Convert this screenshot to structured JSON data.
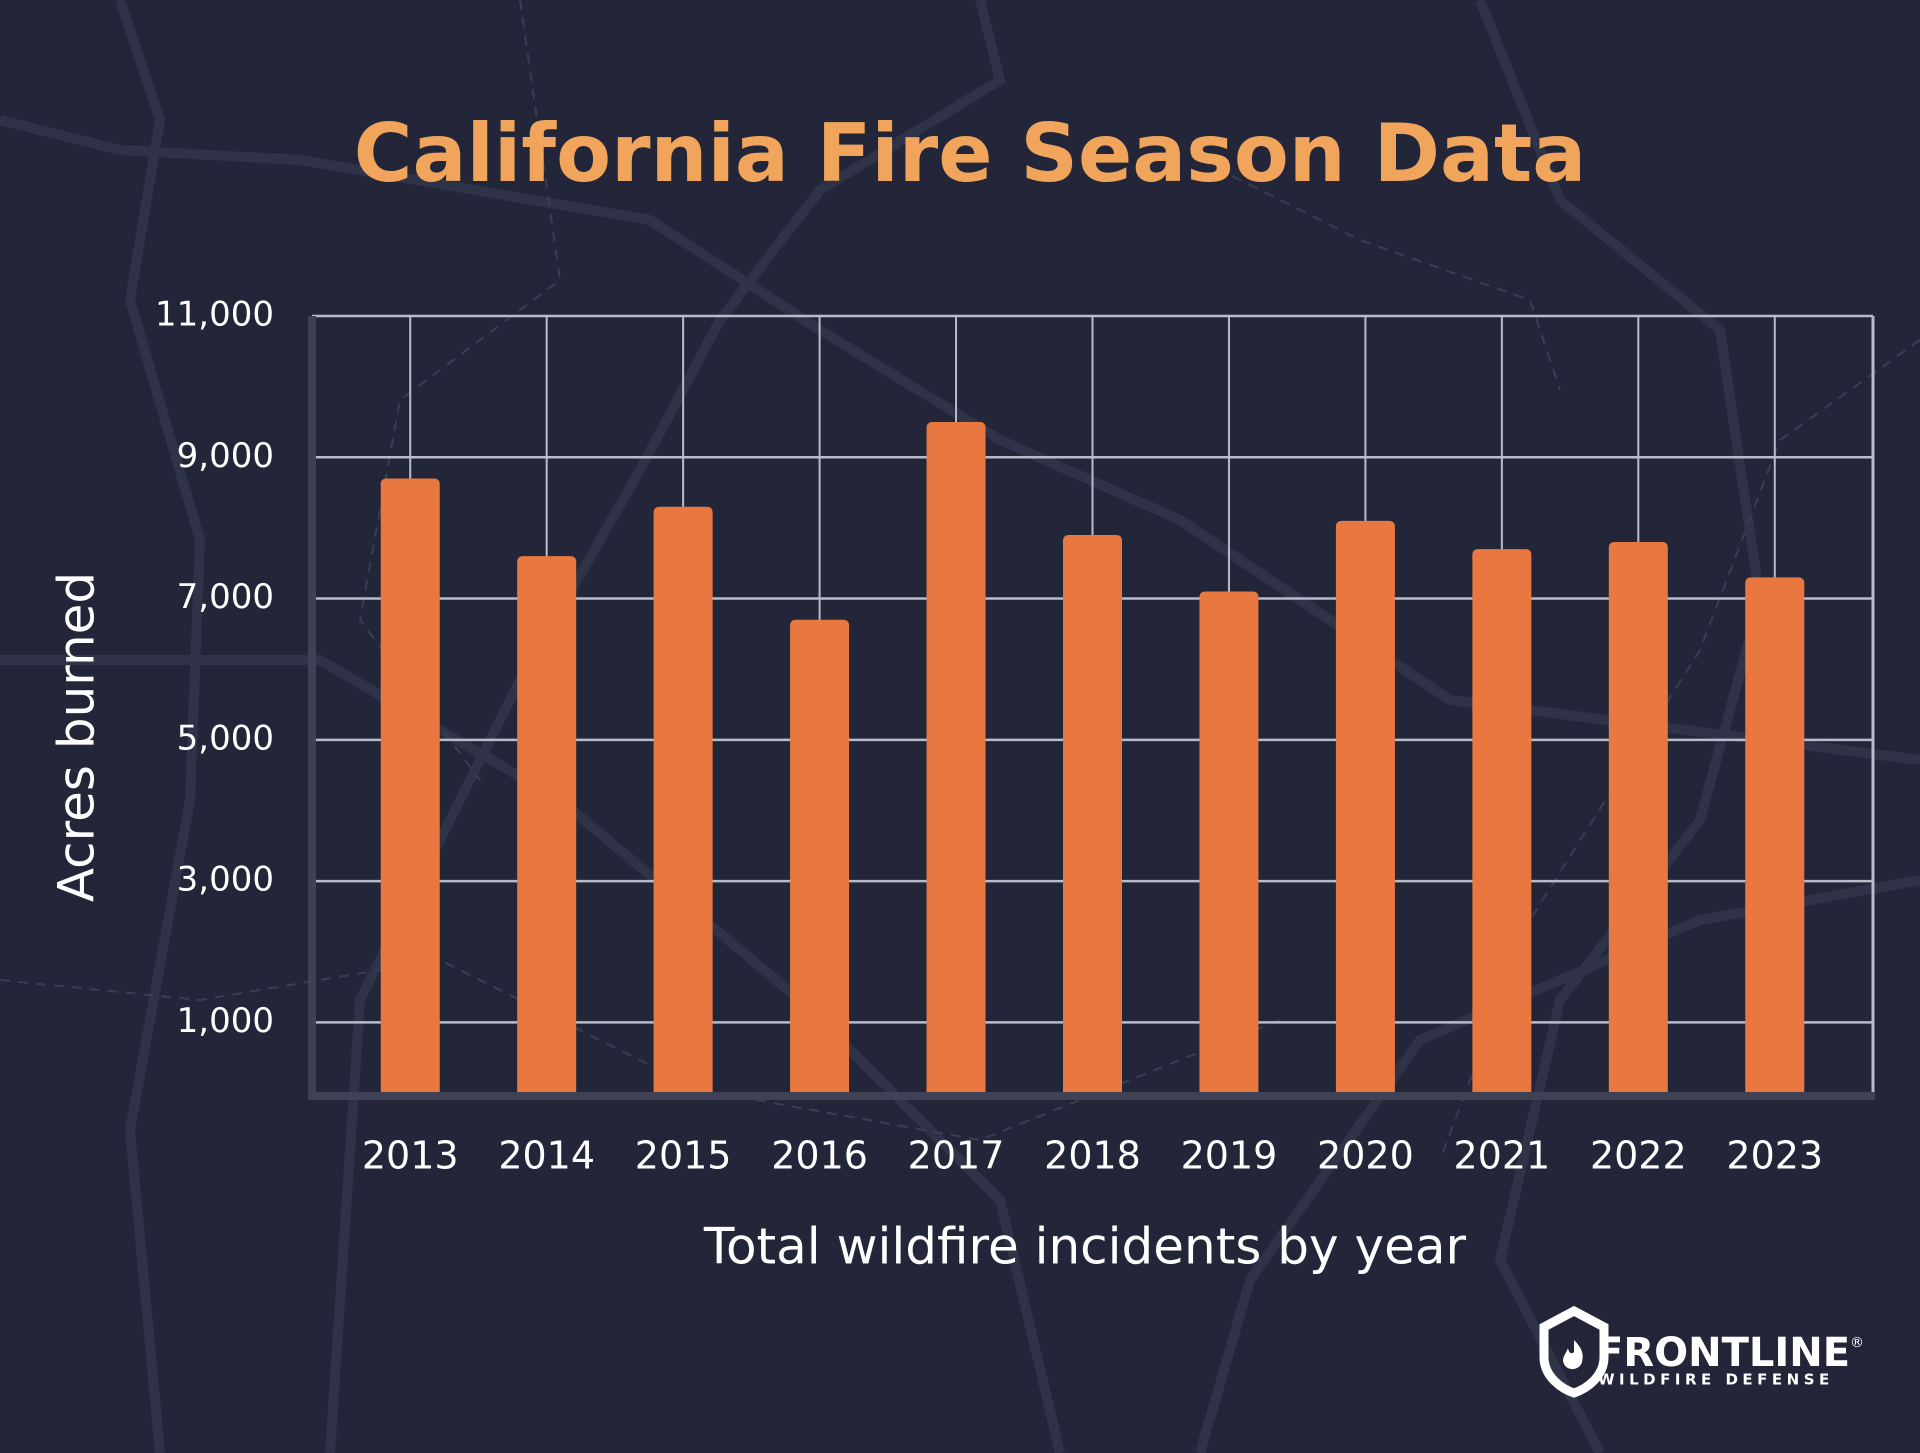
{
  "chart_data": {
    "type": "bar",
    "title": "California Fire Season Data",
    "x_label": "Total wildfire incidents by year",
    "y_label": "Acres burned",
    "categories": [
      "2013",
      "2014",
      "2015",
      "2016",
      "2017",
      "2018",
      "2019",
      "2020",
      "2021",
      "2022",
      "2023"
    ],
    "values": [
      8700,
      7600,
      8300,
      6700,
      9500,
      7900,
      7100,
      8100,
      7700,
      7800,
      7300
    ],
    "color": "#e87840",
    "ylim": [
      0,
      11000
    ],
    "yticks": [
      {
        "value": 1000,
        "label": "1,000"
      },
      {
        "value": 3000,
        "label": "3,000"
      },
      {
        "value": 5000,
        "label": "5,000"
      },
      {
        "value": 7000,
        "label": "7,000"
      },
      {
        "value": 9000,
        "label": "9,000"
      },
      {
        "value": 11000,
        "label": "11,000"
      }
    ],
    "grid": true
  },
  "logo": {
    "name": "FRONTLINE",
    "registered": "®",
    "tagline": "WILDFIRE DEFENSE"
  }
}
